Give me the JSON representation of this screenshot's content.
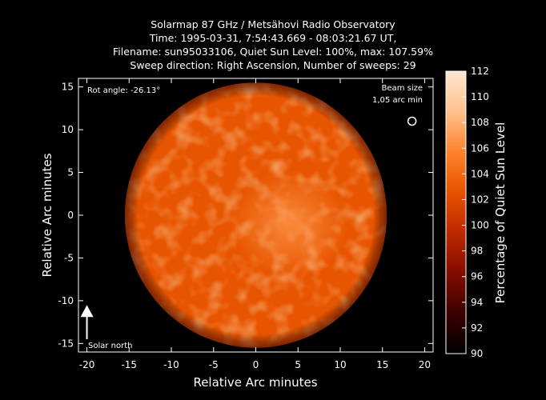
{
  "chart_data": {
    "type": "heatmap",
    "title_lines": [
      "Solarmap 87 GHz / Metsähovi Radio Observatory",
      "Time: 1995-03-31,  7:54:43.669 - 08:03:21.67 UT,",
      "Filename: sun95033106, Quiet Sun Level: 100%, max: 107.59%",
      "Sweep direction: Right Ascension, Number of sweeps: 29"
    ],
    "xlabel": "Relative Arc minutes",
    "ylabel": "Relative Arc minutes",
    "colorbar_label": "Percentage of Quiet Sun Level",
    "xlim": [
      -21,
      21
    ],
    "ylim": [
      -16,
      16
    ],
    "xticks": [
      -20,
      -15,
      -10,
      -5,
      0,
      5,
      10,
      15,
      20
    ],
    "yticks": [
      -15,
      -10,
      -5,
      0,
      5,
      10,
      15
    ],
    "colorbar_range": [
      90,
      112
    ],
    "colorbar_ticks": [
      90,
      92,
      94,
      96,
      98,
      100,
      102,
      104,
      106,
      108,
      110,
      112
    ],
    "colormap": [
      "#000000",
      "#3a0000",
      "#8a0e00",
      "#c42e00",
      "#e85500",
      "#ff8530",
      "#ffc290",
      "#ffe6cf"
    ],
    "disk_center": [
      0,
      0
    ],
    "disk_radius_arcmin": 15.5,
    "quiet_sun_level": 100,
    "max_level": 107.59,
    "annotations": {
      "rot_angle": "Rot angle: -26.13°",
      "beam_line1": "Beam size",
      "beam_line2": "1,05 arc min",
      "solar_north": "Solar north"
    },
    "beam_position": [
      18.5,
      11
    ],
    "beam_diameter_arcmin": 1.05,
    "north_arrow_position": [
      -20,
      -11
    ]
  }
}
